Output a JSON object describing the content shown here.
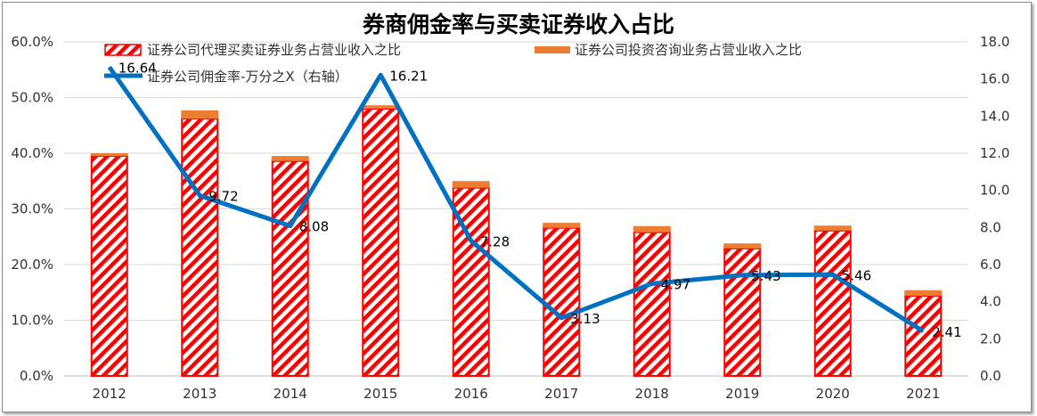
{
  "chart_data": {
    "type": "bar",
    "title": "券商佣金率与买卖证券收入占比",
    "categories": [
      "2012",
      "2013",
      "2014",
      "2015",
      "2016",
      "2017",
      "2018",
      "2019",
      "2020",
      "2021"
    ],
    "series": [
      {
        "name": "证券公司代理买卖证券业务占营业收入之比",
        "kind": "stacked-bar",
        "axis": "left",
        "unit": "%",
        "color": "#ff0000",
        "pattern": "diagonal-hatch",
        "values": [
          39.5,
          46.2,
          38.6,
          48.0,
          33.8,
          26.6,
          25.8,
          22.9,
          26.1,
          14.4
        ]
      },
      {
        "name": "证券公司投资咨询业务占营业收入之比",
        "kind": "stacked-bar",
        "axis": "left",
        "unit": "%",
        "color": "#ed7d31",
        "values": [
          0.5,
          1.5,
          0.9,
          0.6,
          1.2,
          0.9,
          1.1,
          0.9,
          0.9,
          1.0
        ]
      },
      {
        "name": "证券公司佣金率-万分之X（右轴）",
        "kind": "line",
        "axis": "right",
        "color": "#0070c0",
        "values": [
          16.64,
          9.72,
          8.08,
          16.21,
          7.28,
          3.13,
          4.97,
          5.43,
          5.46,
          2.41
        ],
        "labels": [
          "16.64",
          "9.72",
          "8.08",
          "16.21",
          "7.28",
          "3.13",
          "4.97",
          "5.43",
          "5.46",
          "2.41"
        ]
      }
    ],
    "y_left": {
      "range": [
        0,
        60
      ],
      "ticks": [
        "0.0%",
        "10.0%",
        "20.0%",
        "30.0%",
        "40.0%",
        "50.0%",
        "60.0%"
      ]
    },
    "y_right": {
      "range": [
        0,
        18
      ],
      "ticks": [
        "0.0",
        "2.0",
        "4.0",
        "6.0",
        "8.0",
        "10.0",
        "12.0",
        "14.0",
        "16.0",
        "18.0"
      ]
    },
    "grid": true,
    "legend": "top"
  }
}
